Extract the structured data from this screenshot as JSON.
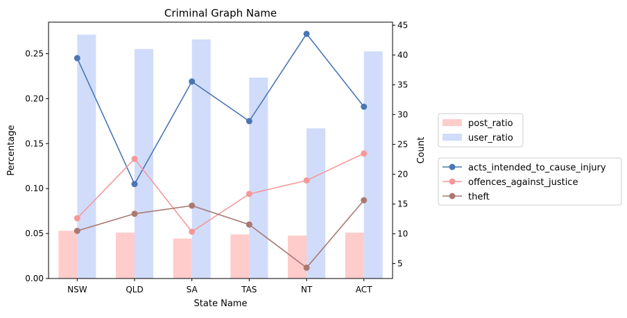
{
  "chart_data": {
    "type": "bar+line",
    "title": "Criminal Graph Name",
    "xlabel": "State Name",
    "ylabel_left": "Percentage",
    "ylabel_right": "Count",
    "categories": [
      "NSW",
      "QLD",
      "SA",
      "TAS",
      "NT",
      "ACT"
    ],
    "left_axis": {
      "ylim": [
        0,
        0.285
      ],
      "ticks": [
        0.0,
        0.05,
        0.1,
        0.15,
        0.2,
        0.25
      ],
      "tick_labels": [
        "0.00",
        "0.05",
        "0.10",
        "0.15",
        "0.20",
        "0.25"
      ]
    },
    "right_axis": {
      "ylim": [
        2.5,
        45.5
      ],
      "ticks": [
        5,
        10,
        15,
        20,
        25,
        30,
        35,
        40,
        45
      ],
      "tick_labels": [
        "5",
        "10",
        "15",
        "20",
        "25",
        "30",
        "35",
        "40",
        "45"
      ]
    },
    "bars": [
      {
        "name": "post_ratio",
        "color": "#ffcccc",
        "values": [
          10.5,
          10.2,
          9.2,
          9.9,
          9.7,
          10.2
        ]
      },
      {
        "name": "user_ratio",
        "color": "#d0dcfa",
        "values": [
          43.4,
          41.0,
          42.6,
          36.2,
          27.7,
          40.6
        ]
      }
    ],
    "lines": [
      {
        "name": "acts_intended_to_cause_injury",
        "color": "#4a76b3",
        "values": [
          0.245,
          0.105,
          0.219,
          0.175,
          0.272,
          0.191
        ]
      },
      {
        "name": "offences_against_justice",
        "color": "#f4989a",
        "values": [
          0.067,
          0.133,
          0.052,
          0.094,
          0.109,
          0.139
        ]
      },
      {
        "name": "theft",
        "color": "#a97a72",
        "values": [
          0.053,
          0.072,
          0.081,
          0.06,
          0.012,
          0.087
        ]
      }
    ],
    "legend_placement": "right, outside plot",
    "grid": false
  }
}
